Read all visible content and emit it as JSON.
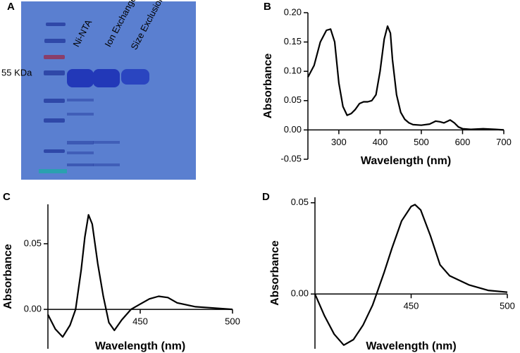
{
  "gel": {
    "panel": "A",
    "marker": "55 KDa",
    "lanes": [
      "Ni-NTA",
      "Ion Exchange",
      "Size Exclusion"
    ]
  },
  "chart_data": [
    {
      "type": "line",
      "panel": "B",
      "x_label": "Wavelength (nm)",
      "y_label": "Absorbance",
      "x": [
        225,
        240,
        255,
        270,
        280,
        290,
        300,
        310,
        320,
        330,
        340,
        350,
        360,
        370,
        380,
        390,
        400,
        410,
        418,
        425,
        430,
        440,
        450,
        460,
        470,
        480,
        500,
        520,
        535,
        545,
        555,
        570,
        580,
        590,
        600,
        620,
        650,
        680,
        700
      ],
      "series": [
        {
          "color": "#000000",
          "values": [
            0.09,
            0.11,
            0.15,
            0.17,
            0.172,
            0.15,
            0.08,
            0.04,
            0.025,
            0.028,
            0.035,
            0.045,
            0.048,
            0.048,
            0.05,
            0.06,
            0.1,
            0.155,
            0.177,
            0.165,
            0.12,
            0.06,
            0.03,
            0.018,
            0.012,
            0.009,
            0.008,
            0.01,
            0.015,
            0.014,
            0.012,
            0.017,
            0.012,
            0.005,
            0.002,
            0.001,
            0.002,
            0.001,
            0.0
          ]
        }
      ],
      "xlim": [
        225,
        700
      ],
      "ylim": [
        -0.05,
        0.2
      ],
      "xticks": [
        300,
        400,
        500,
        600,
        700
      ],
      "yticks": [
        {
          "value": -0.05,
          "label": "-0.05"
        },
        {
          "value": 0,
          "label": "0.00"
        },
        {
          "value": 0.05,
          "label": "0.05"
        },
        {
          "value": 0.1,
          "label": "0.10"
        },
        {
          "value": 0.15,
          "label": "0.15"
        },
        {
          "value": 0.2,
          "label": "0.20"
        }
      ]
    },
    {
      "type": "line",
      "panel": "C",
      "x_label": "Wavelength (nm)",
      "y_label": "Absorbance",
      "x": [
        400,
        404,
        408,
        412,
        415,
        418,
        420,
        422,
        424,
        427,
        430,
        433,
        436,
        440,
        445,
        450,
        455,
        460,
        465,
        470,
        480,
        490,
        500
      ],
      "series": [
        {
          "color": "#000000",
          "values": [
            -0.004,
            -0.015,
            -0.021,
            -0.012,
            0.0,
            0.03,
            0.055,
            0.072,
            0.065,
            0.035,
            0.01,
            -0.01,
            -0.016,
            -0.008,
            0.0,
            0.004,
            0.008,
            0.01,
            0.009,
            0.005,
            0.002,
            0.001,
            0.0
          ]
        }
      ],
      "xlim": [
        400,
        500
      ],
      "ylim": [
        -0.03,
        0.08
      ],
      "xticks": [
        450,
        500
      ],
      "yticks": [
        {
          "value": 0,
          "label": "0.00"
        },
        {
          "value": 0.05,
          "label": "0.05"
        }
      ]
    },
    {
      "type": "line",
      "panel": "D",
      "x_label": "Wavelength (nm)",
      "y_label": "Absorbance",
      "x": [
        400,
        405,
        410,
        415,
        420,
        425,
        430,
        432,
        436,
        440,
        445,
        450,
        452,
        455,
        460,
        465,
        470,
        480,
        490,
        500
      ],
      "series": [
        {
          "color": "#000000",
          "values": [
            0.0,
            -0.012,
            -0.022,
            -0.028,
            -0.025,
            -0.017,
            -0.006,
            0.0,
            0.012,
            0.025,
            0.04,
            0.048,
            0.049,
            0.046,
            0.032,
            0.016,
            0.01,
            0.005,
            0.002,
            0.001
          ]
        }
      ],
      "xlim": [
        400,
        500
      ],
      "ylim": [
        -0.03,
        0.053
      ],
      "xticks": [
        450,
        500
      ],
      "yticks": [
        {
          "value": 0,
          "label": "0.00"
        },
        {
          "value": 0.05,
          "label": "0.05"
        }
      ]
    }
  ]
}
